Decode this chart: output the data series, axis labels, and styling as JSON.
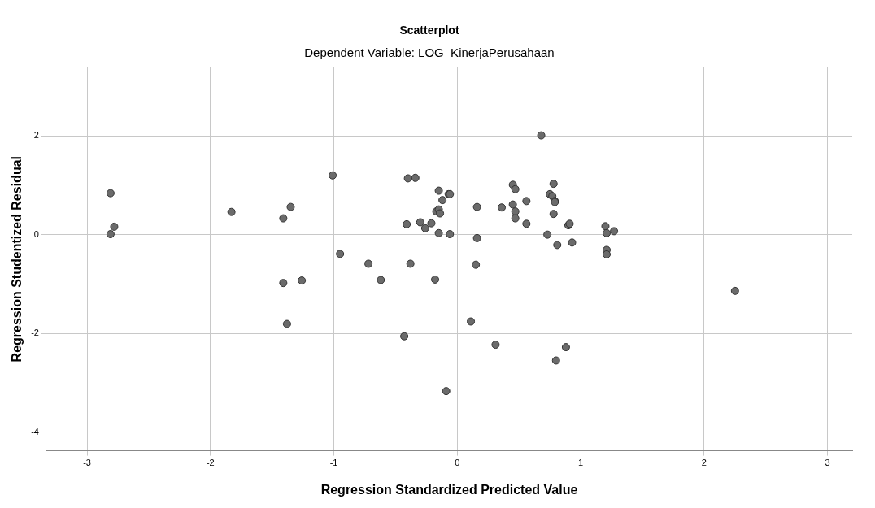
{
  "chart_data": {
    "type": "scatter",
    "title": "Scatterplot",
    "subtitle": "Dependent Variable: LOG_KinerjaPerusahaan",
    "xlabel": "Regression Standardized Predicted Value",
    "ylabel": "Regression Studentized Residual",
    "x": [
      -2.81,
      -2.78,
      -2.81,
      -1.83,
      -1.41,
      -1.35,
      -1.41,
      -1.26,
      -1.38,
      -1.01,
      -0.95,
      -0.72,
      -0.62,
      -0.4,
      -0.34,
      -0.41,
      -0.38,
      -0.43,
      -0.3,
      -0.26,
      -0.21,
      -0.18,
      -0.15,
      -0.12,
      -0.17,
      -0.15,
      -0.14,
      -0.15,
      -0.07,
      -0.06,
      -0.06,
      -0.09,
      0.11,
      0.16,
      0.16,
      0.15,
      0.31,
      0.36,
      0.45,
      0.47,
      0.45,
      0.47,
      0.47,
      0.56,
      0.56,
      0.68,
      0.73,
      0.75,
      0.77,
      0.78,
      0.79,
      0.79,
      0.78,
      0.81,
      0.8,
      0.88,
      0.9,
      0.91,
      0.93,
      1.2,
      1.21,
      1.27,
      1.21,
      1.21,
      2.25
    ],
    "values": [
      0.84,
      0.16,
      0.01,
      0.46,
      0.33,
      0.56,
      -0.98,
      -0.93,
      -1.81,
      1.2,
      -0.39,
      -0.59,
      -0.92,
      1.14,
      1.15,
      0.21,
      -0.59,
      -2.06,
      0.25,
      0.13,
      0.23,
      -0.91,
      0.89,
      0.7,
      0.47,
      0.51,
      0.43,
      0.03,
      0.82,
      0.82,
      0.01,
      -3.17,
      -1.76,
      0.56,
      -0.07,
      -0.61,
      -2.23,
      0.55,
      1.01,
      0.92,
      0.61,
      0.47,
      0.33,
      0.68,
      0.22,
      2.01,
      0.0,
      0.82,
      0.78,
      1.03,
      0.68,
      0.66,
      0.42,
      -0.21,
      -2.55,
      -2.28,
      0.19,
      0.22,
      -0.16,
      0.17,
      0.03,
      0.07,
      -0.31,
      -0.4,
      -1.14
    ],
    "color": "#6b6b6b",
    "marker": "circle",
    "xlim": [
      -3.33,
      3.2
    ],
    "ylim": [
      -4.38,
      3.39
    ],
    "xticks": [
      -3,
      -2,
      -1,
      0,
      1,
      2,
      3
    ],
    "yticks": [
      -4,
      -2,
      0,
      2
    ],
    "grid": true
  }
}
